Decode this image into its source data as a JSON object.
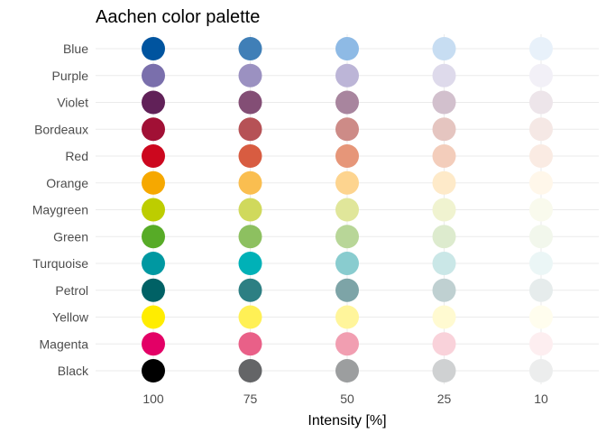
{
  "chart_data": {
    "type": "scatter",
    "title": "Aachen color palette",
    "xlabel": "Intensity [%]",
    "ylabel": "",
    "x_categories": [
      "100",
      "75",
      "50",
      "25",
      "10"
    ],
    "y_categories": [
      "Blue",
      "Purple",
      "Violet",
      "Bordeaux",
      "Red",
      "Orange",
      "Maygreen",
      "Green",
      "Turquoise",
      "Petrol",
      "Yellow",
      "Magenta",
      "Black"
    ],
    "grid": true,
    "legend": "none",
    "colors": [
      [
        "#00549F",
        "#407FB7",
        "#8EBAE5",
        "#C7DDF2",
        "#E8F1FA"
      ],
      [
        "#7A6FAC",
        "#9B91C1",
        "#BCB5D7",
        "#DEDAEB",
        "#F2F0F7"
      ],
      [
        "#612158",
        "#834E75",
        "#A8859E",
        "#D2C0CD",
        "#EDE5EA"
      ],
      [
        "#A11035",
        "#B65256",
        "#CD8B87",
        "#E5C5C0",
        "#F5E8E5"
      ],
      [
        "#CC071E",
        "#D85C41",
        "#E69679",
        "#F3CDBB",
        "#FAEBE3"
      ],
      [
        "#F6A800",
        "#FABE50",
        "#FDD48F",
        "#FEEAC9",
        "#FFF7EA"
      ],
      [
        "#BDCD00",
        "#D0D95C",
        "#E0E69A",
        "#F0F3D0",
        "#F9FAED"
      ],
      [
        "#57AB27",
        "#8DC060",
        "#B8D698",
        "#DDEBCE",
        "#F2F7EC"
      ],
      [
        "#0098A1",
        "#00B1B7",
        "#89CCCF",
        "#CAE7E7",
        "#EBF6F6"
      ],
      [
        "#006165",
        "#2D7F83",
        "#7DA4A7",
        "#BFD0D1",
        "#E6ECEC"
      ],
      [
        "#FFED00",
        "#FFF055",
        "#FFF59B",
        "#FFFAD1",
        "#FFFDEE"
      ],
      [
        "#E30066",
        "#E96088",
        "#F19EB1",
        "#F9D2DA",
        "#FDEEF0"
      ],
      [
        "#000000",
        "#646567",
        "#9C9E9F",
        "#CFD1D2",
        "#ECEDED"
      ]
    ]
  }
}
